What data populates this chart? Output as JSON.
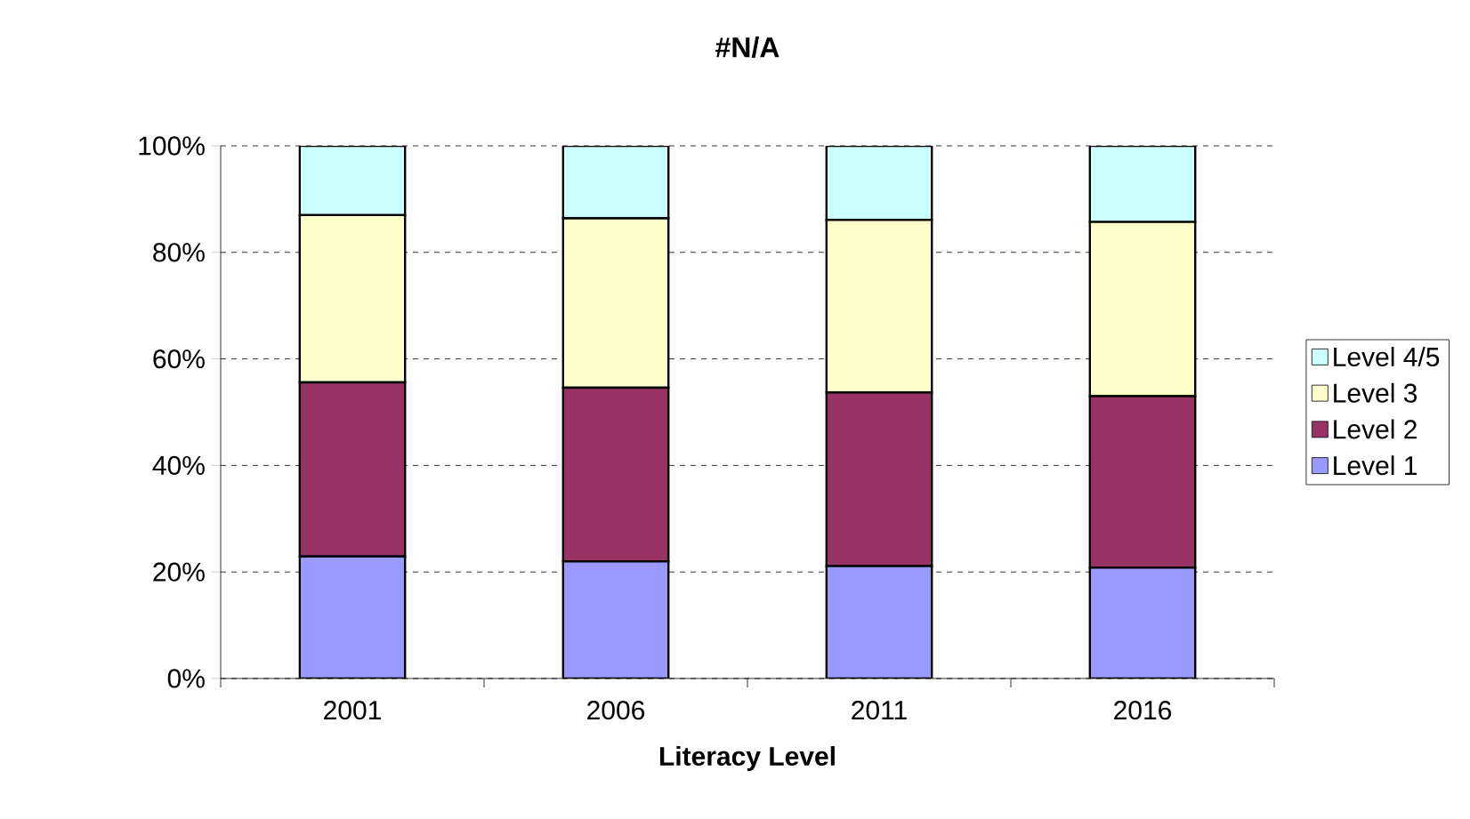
{
  "chart_data": {
    "type": "bar",
    "stacked": true,
    "title": "#N/A",
    "xlabel": "Literacy Level",
    "categories": [
      "2001",
      "2006",
      "2011",
      "2016"
    ],
    "series": [
      {
        "name": "Level 1",
        "color": "#9999ff",
        "values": [
          22.9,
          22.0,
          21.1,
          20.8
        ]
      },
      {
        "name": "Level 2",
        "color": "#993366",
        "values": [
          32.7,
          32.6,
          32.6,
          32.2
        ]
      },
      {
        "name": "Level 3",
        "color": "#ffffcc",
        "values": [
          31.4,
          31.8,
          32.4,
          32.7
        ]
      },
      {
        "name": "Level 4/5",
        "color": "#ccffff",
        "values": [
          13.0,
          13.6,
          13.9,
          14.3
        ]
      }
    ],
    "ylim": [
      0,
      100
    ],
    "yticks": [
      {
        "value": 0,
        "label": "0%"
      },
      {
        "value": 20,
        "label": "20%"
      },
      {
        "value": 40,
        "label": "40%"
      },
      {
        "value": 60,
        "label": "60%"
      },
      {
        "value": 80,
        "label": "80%"
      },
      {
        "value": 100,
        "label": "100%"
      }
    ],
    "grid": "y",
    "line_style": "dashed",
    "legend": "right"
  }
}
